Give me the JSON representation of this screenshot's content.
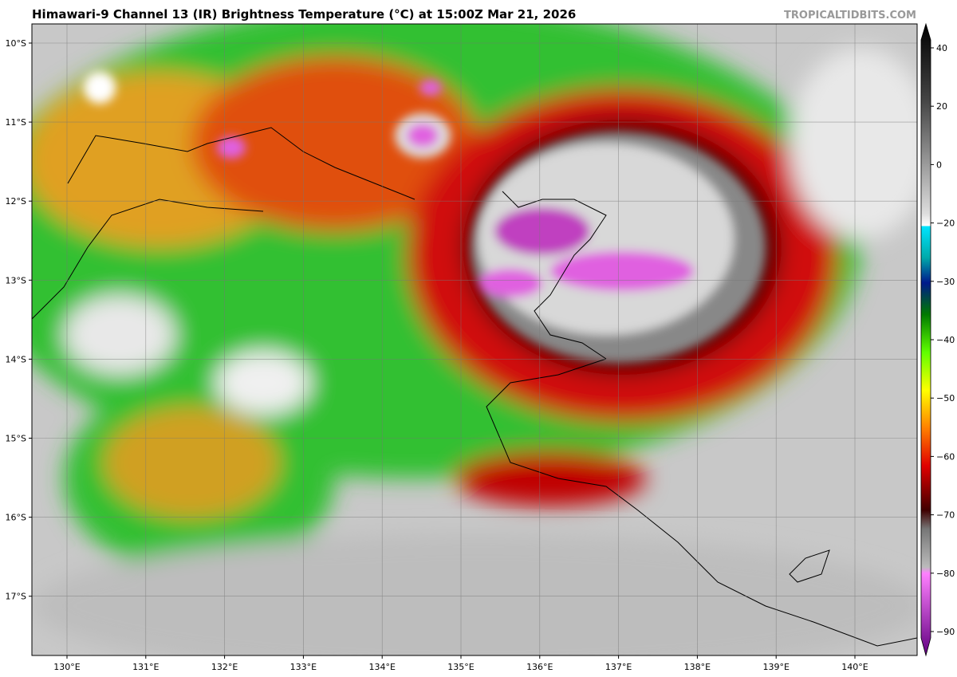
{
  "header": {
    "title": "Himawari-9 Channel 13 (IR) Brightness Temperature (°C) at 15:00Z Mar 21, 2026",
    "credit": "TROPICALTIDBITS.COM"
  },
  "map": {
    "lat_labels": [
      "10°S",
      "11°S",
      "12°S",
      "13°S",
      "14°S",
      "15°S",
      "16°S",
      "17°S"
    ],
    "lon_labels": [
      "130°E",
      "131°E",
      "132°E",
      "133°E",
      "134°E",
      "135°E",
      "136°E",
      "137°E",
      "138°E",
      "139°E",
      "140°E"
    ]
  },
  "colorbar": {
    "ticks": [
      "40",
      "20",
      "0",
      "−20",
      "−30",
      "−40",
      "−50",
      "−60",
      "−70",
      "−80",
      "−90"
    ]
  }
}
